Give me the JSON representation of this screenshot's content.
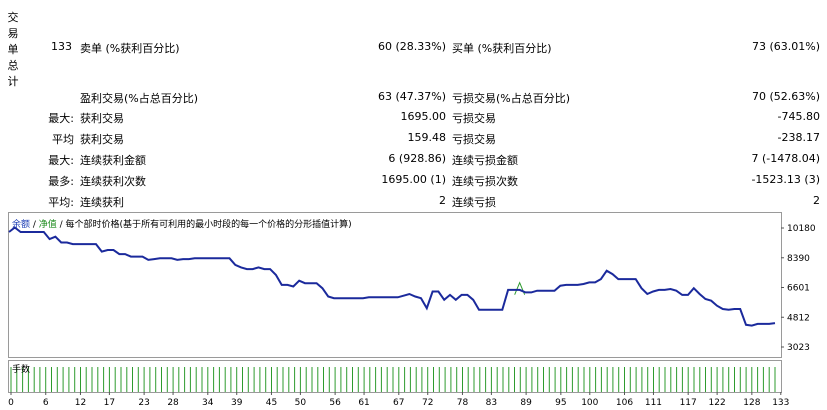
{
  "summary": {
    "title_chars": [
      "交",
      "易",
      "单",
      "总",
      "计"
    ],
    "total": "133",
    "sell_label": "卖单 (%获利百分比)",
    "sell_value": "60 (28.33%)",
    "buy_label": "买单 (%获利百分比)",
    "buy_value": "73 (63.01%)"
  },
  "stats": {
    "profit_trades_label": "盈利交易(%占总百分比)",
    "profit_trades_value": "63 (47.37%)",
    "loss_trades_label": "亏损交易(%占总百分比)",
    "loss_trades_value": "70 (52.63%)",
    "rows": [
      {
        "prefix": "最大:",
        "left_label": "获利交易",
        "left_value": "1695.00",
        "right_label": "亏损交易",
        "right_value": "-745.80"
      },
      {
        "prefix": "平均",
        "left_label": "获利交易",
        "left_value": "159.48",
        "right_label": "亏损交易",
        "right_value": "-238.17"
      },
      {
        "prefix": "最大:",
        "left_label": "连续获利金额",
        "left_value": "6 (928.86)",
        "right_label": "连续亏损金额",
        "right_value": "7 (-1478.04)"
      },
      {
        "prefix": "最多:",
        "left_label": "连续获利次数",
        "left_value": "1695.00 (1)",
        "right_label": "连续亏损次数",
        "right_value": "-1523.13 (3)"
      },
      {
        "prefix": "平均:",
        "left_label": "连续获利",
        "left_value": "2",
        "right_label": "连续亏损",
        "right_value": "2"
      }
    ]
  },
  "chart": {
    "legend_balance": "余额",
    "legend_sep1": " / ",
    "legend_equity": "净值",
    "legend_rest": " / 每个部时价格(基于所有可利用的最小时段的每一个价格的分形插值计算)",
    "volume_label": "手数",
    "colors": {
      "balance": "#1b2a9c",
      "equity": "#2e9b2e",
      "volume": "#2e9b2e"
    }
  },
  "chart_data": {
    "type": "line",
    "series": [
      {
        "name": "余额",
        "values": [
          10180,
          10450,
          10180,
          10180,
          10180,
          10180,
          10180,
          9750,
          9900,
          9550,
          9550,
          9450,
          9450,
          9450,
          9450,
          9450,
          9000,
          9100,
          9100,
          8850,
          8850,
          8700,
          8700,
          8700,
          8500,
          8550,
          8600,
          8600,
          8600,
          8500,
          8550,
          8550,
          8600,
          8600,
          8600,
          8600,
          8600,
          8600,
          8600,
          8200,
          8050,
          7950,
          7950,
          8050,
          7950,
          7950,
          7600,
          7000,
          7000,
          6900,
          7250,
          7100,
          7100,
          7100,
          6800,
          6300,
          6200,
          6200,
          6200,
          6200,
          6200,
          6200,
          6250,
          6250,
          6250,
          6250,
          6250,
          6250,
          6350,
          6450,
          6300,
          6200,
          5600,
          6600,
          6600,
          6100,
          6400,
          6100,
          6400,
          6400,
          6100,
          5500,
          5500,
          5500,
          5500,
          5500,
          6700,
          6700,
          6700,
          6550,
          6550,
          6650,
          6650,
          6650,
          6650,
          6950,
          7000,
          7000,
          7000,
          7050,
          7150,
          7150,
          7350,
          7850,
          7650,
          7350,
          7350,
          7350,
          7350,
          6800,
          6450,
          6600,
          6700,
          6700,
          6750,
          6650,
          6400,
          6400,
          6800,
          6450,
          6150,
          6050,
          5750,
          5550,
          5500,
          5550,
          5550,
          4600,
          4550,
          4650,
          4650,
          4650,
          4700
        ]
      }
    ],
    "x_ticks": [
      "0",
      "6",
      "12",
      "17",
      "23",
      "28",
      "34",
      "39",
      "45",
      "50",
      "56",
      "61",
      "67",
      "72",
      "78",
      "83",
      "89",
      "95",
      "100",
      "106",
      "111",
      "117",
      "122",
      "128",
      "133"
    ],
    "y_ticks": [
      "10180",
      "8390",
      "6601",
      "4812",
      "3023"
    ],
    "ylim": [
      3023,
      10180
    ]
  }
}
